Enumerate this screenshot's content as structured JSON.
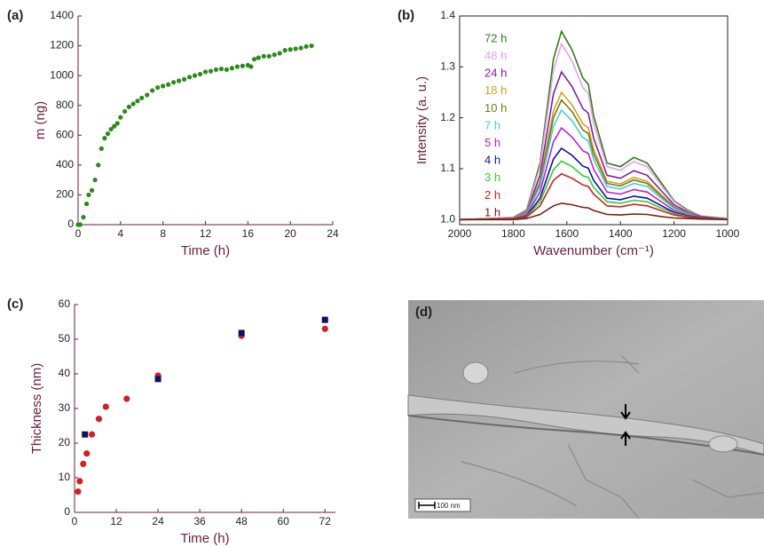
{
  "chart_data": [
    {
      "type": "scatter",
      "panel_label": "(a)",
      "xlabel": "Time (h)",
      "ylabel": "m (ng)",
      "xlim": [
        0,
        24
      ],
      "xticks": [
        0,
        4,
        8,
        12,
        16,
        20,
        24
      ],
      "ylim": [
        0,
        1400
      ],
      "yticks": [
        0,
        200,
        400,
        600,
        800,
        1000,
        1200,
        1400
      ],
      "series": [
        {
          "color": "#2a8a1a",
          "marker": "circle",
          "x": [
            0,
            0.2,
            0.5,
            0.8,
            1.0,
            1.3,
            1.6,
            1.9,
            2.2,
            2.5,
            2.8,
            3.1,
            3.4,
            3.7,
            4.0,
            4.4,
            4.8,
            5.2,
            5.6,
            6.0,
            6.5,
            7.0,
            7.5,
            8.0,
            8.5,
            9.0,
            9.5,
            10.0,
            10.5,
            11,
            11.5,
            12,
            12.5,
            13,
            13.5,
            14,
            14.5,
            15,
            15.5,
            16,
            16.3,
            16.6,
            17,
            17.5,
            18,
            18.5,
            19,
            19.5,
            20,
            20.5,
            21,
            21.5,
            22
          ],
          "values": [
            0,
            0,
            50,
            140,
            200,
            230,
            300,
            400,
            510,
            580,
            610,
            640,
            660,
            680,
            720,
            760,
            790,
            810,
            830,
            850,
            870,
            900,
            920,
            930,
            940,
            955,
            965,
            975,
            990,
            1000,
            1010,
            1025,
            1030,
            1040,
            1045,
            1040,
            1050,
            1060,
            1065,
            1070,
            1060,
            1110,
            1120,
            1130,
            1130,
            1140,
            1150,
            1170,
            1175,
            1180,
            1185,
            1195,
            1200
          ]
        }
      ]
    },
    {
      "type": "line",
      "panel_label": "(b)",
      "xlabel": "Wavenumber (cm⁻¹)",
      "ylabel": "Intensity (a. u.)",
      "xlim": [
        2000,
        1000
      ],
      "xticks": [
        2000,
        1800,
        1600,
        1400,
        1200,
        1000
      ],
      "ylim": [
        0.99,
        1.4
      ],
      "yticks": [
        {
          "value": 1,
          "label": "1.0"
        },
        1.1,
        1.2,
        1.3,
        1.4
      ],
      "x": [
        2000,
        1800,
        1750,
        1700,
        1650,
        1620,
        1580,
        1540,
        1520,
        1500,
        1450,
        1400,
        1350,
        1300,
        1250,
        1200,
        1150,
        1100,
        1000
      ],
      "series": [
        {
          "name": "72 h",
          "color": "#2e7d1e",
          "values": [
            1,
            1.004,
            1.019,
            1.111,
            1.315,
            1.37,
            1.333,
            1.278,
            1.266,
            1.204,
            1.111,
            1.104,
            1.122,
            1.111,
            1.074,
            1.037,
            1.019,
            1.007,
            1.002
          ]
        },
        {
          "name": "48 h",
          "color": "#e8a0e8",
          "values": [
            1,
            1.003,
            1.017,
            1.104,
            1.293,
            1.345,
            1.311,
            1.259,
            1.248,
            1.19,
            1.104,
            1.097,
            1.114,
            1.104,
            1.069,
            1.035,
            1.017,
            1.007,
            1.002
          ]
        },
        {
          "name": "24 h",
          "color": "#7b1fa2",
          "values": [
            1,
            1.003,
            1.015,
            1.087,
            1.247,
            1.29,
            1.261,
            1.218,
            1.209,
            1.16,
            1.087,
            1.081,
            1.096,
            1.087,
            1.058,
            1.029,
            1.015,
            1.006,
            1.001
          ]
        },
        {
          "name": "18 h",
          "color": "#d4a020",
          "values": [
            1,
            1.003,
            1.013,
            1.075,
            1.213,
            1.25,
            1.225,
            1.188,
            1.18,
            1.138,
            1.075,
            1.07,
            1.083,
            1.075,
            1.05,
            1.025,
            1.013,
            1.005,
            1.001
          ]
        },
        {
          "name": "10 h",
          "color": "#7a7a10",
          "values": [
            1,
            1.002,
            1.012,
            1.071,
            1.2,
            1.235,
            1.212,
            1.176,
            1.169,
            1.129,
            1.071,
            1.066,
            1.078,
            1.071,
            1.047,
            1.024,
            1.012,
            1.005,
            1.001
          ]
        },
        {
          "name": "7 h",
          "color": "#40d0e0",
          "values": [
            1,
            1.002,
            1.011,
            1.065,
            1.183,
            1.215,
            1.194,
            1.161,
            1.155,
            1.118,
            1.065,
            1.06,
            1.071,
            1.065,
            1.043,
            1.022,
            1.011,
            1.004,
            1.001
          ]
        },
        {
          "name": "5 h",
          "color": "#c020d0",
          "values": [
            1,
            1.002,
            1.009,
            1.054,
            1.153,
            1.18,
            1.162,
            1.135,
            1.13,
            1.099,
            1.054,
            1.05,
            1.059,
            1.054,
            1.036,
            1.018,
            1.009,
            1.004,
            1.001
          ]
        },
        {
          "name": "4 h",
          "color": "#1010a0",
          "values": [
            1,
            1.001,
            1.007,
            1.042,
            1.119,
            1.14,
            1.126,
            1.105,
            1.101,
            1.077,
            1.042,
            1.039,
            1.046,
            1.042,
            1.028,
            1.014,
            1.007,
            1.003,
            1.001
          ]
        },
        {
          "name": "3 h",
          "color": "#30d030",
          "values": [
            1,
            1.001,
            1.006,
            1.035,
            1.098,
            1.115,
            1.104,
            1.086,
            1.083,
            1.063,
            1.035,
            1.032,
            1.038,
            1.035,
            1.023,
            1.012,
            1.006,
            1.002,
            1.001
          ]
        },
        {
          "name": "2 h",
          "color": "#d02020",
          "values": [
            1,
            1.001,
            1.005,
            1.027,
            1.077,
            1.09,
            1.081,
            1.068,
            1.065,
            1.05,
            1.027,
            1.025,
            1.03,
            1.027,
            1.018,
            1.009,
            1.005,
            1.002,
            1
          ]
        },
        {
          "name": "1 h",
          "color": "#7a2010",
          "values": [
            1,
            1,
            1.002,
            1.01,
            1.027,
            1.032,
            1.029,
            1.024,
            1.023,
            1.018,
            1.01,
            1.009,
            1.011,
            1.01,
            1.006,
            1.003,
            1.002,
            1.001,
            1
          ]
        }
      ]
    },
    {
      "type": "scatter",
      "panel_label": "(c)",
      "xlabel": "Time (h)",
      "ylabel": "Thickness (nm)",
      "xlim": [
        0,
        75
      ],
      "xticks": [
        0,
        12,
        24,
        36,
        48,
        60,
        72
      ],
      "ylim": [
        0,
        60
      ],
      "yticks": [
        0,
        10,
        20,
        30,
        40,
        50,
        60
      ],
      "series": [
        {
          "color": "#d42020",
          "marker": "circle",
          "x": [
            1,
            1.5,
            2.5,
            3.5,
            5,
            7,
            9,
            15,
            24,
            48,
            72
          ],
          "values": [
            6,
            9,
            14,
            17,
            22.5,
            27,
            30.5,
            32.8,
            39.5,
            51,
            53
          ]
        },
        {
          "color": "#10106a",
          "marker": "square",
          "x": [
            3,
            24,
            48,
            72
          ],
          "values": [
            22.5,
            38.5,
            51.8,
            55.6
          ]
        }
      ]
    }
  ],
  "image_panel": {
    "label": "(d)",
    "scale_bar": "100 nm"
  }
}
